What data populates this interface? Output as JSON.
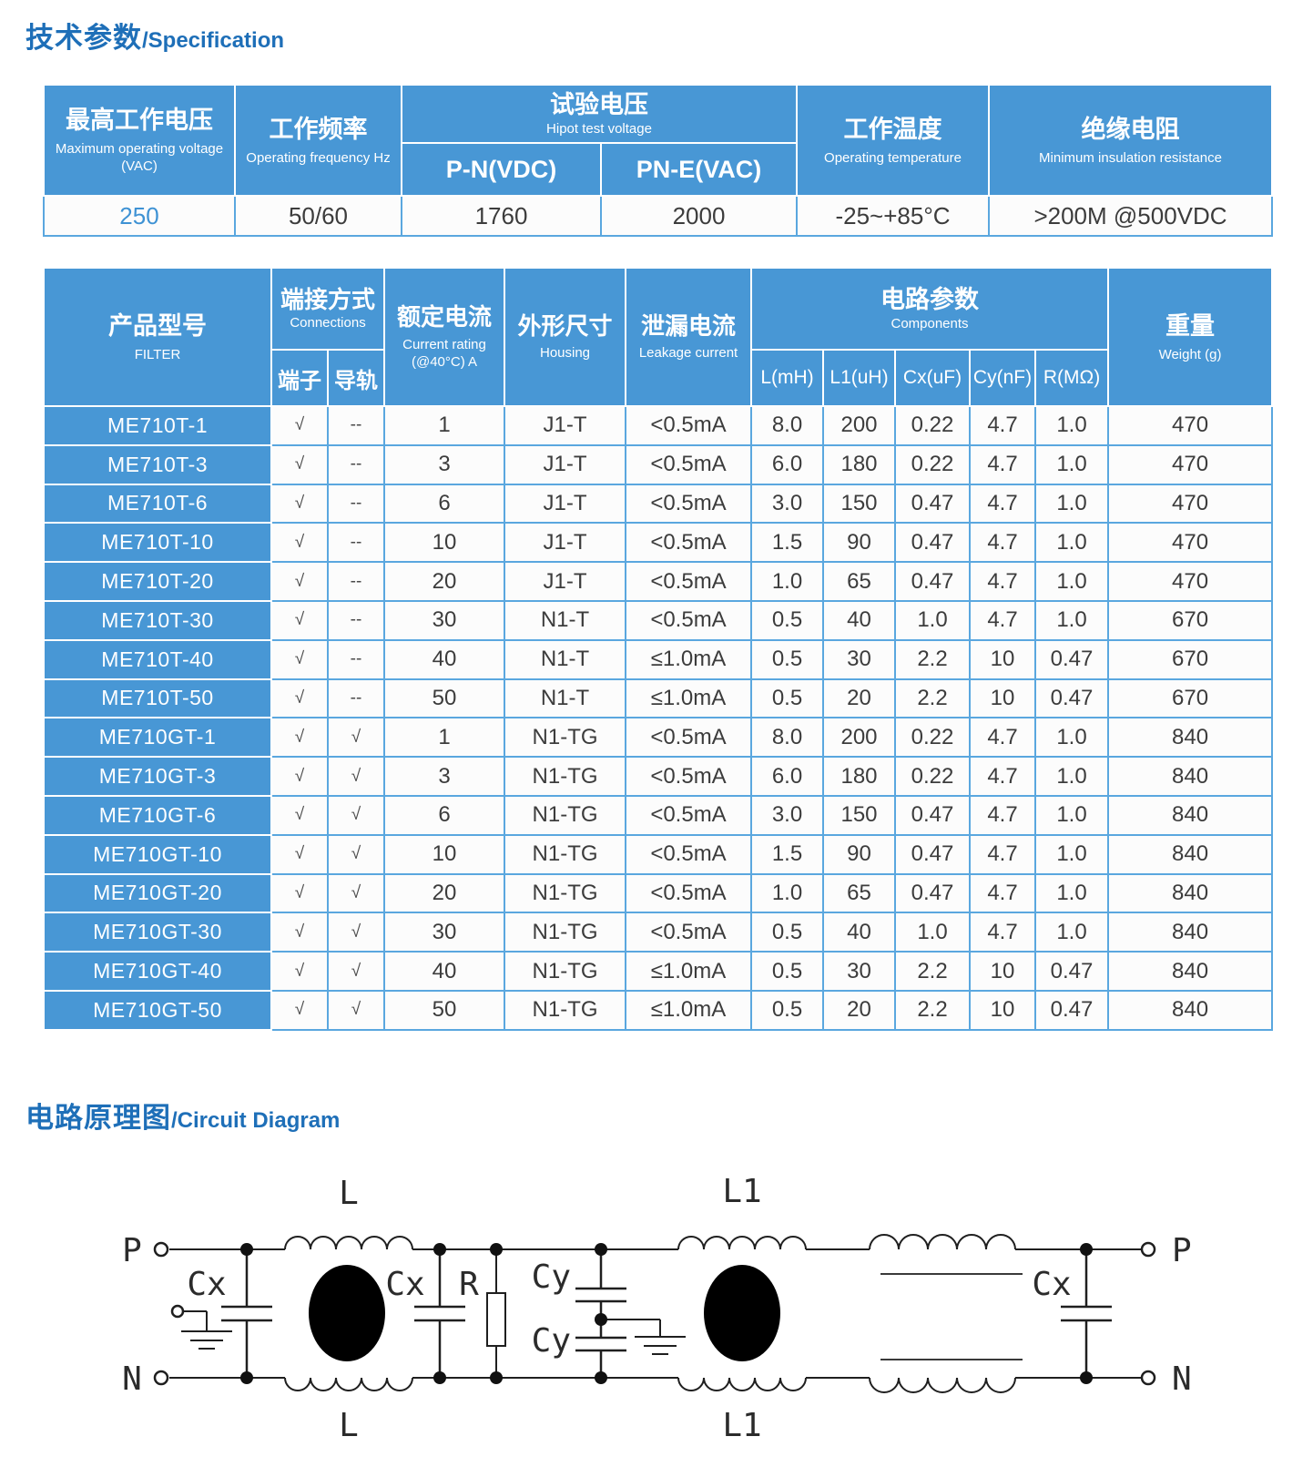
{
  "titles": {
    "spec_zh": "技术参数",
    "spec_en": "/Specification",
    "circuit_zh": "电路原理图",
    "circuit_en": "/Circuit Diagram"
  },
  "colors": {
    "header_blue": "#4897d5",
    "grid_blue": "#5aa7df",
    "title_blue": "#1e6fb8",
    "accent_value_blue": "#3e92d4",
    "body_text": "#3c3c3c"
  },
  "spec_table": {
    "max_voltage": {
      "zh": "最高工作电压",
      "en": "Maximum operating voltage   (VAC)"
    },
    "frequency": {
      "zh": "工作频率",
      "en": "Operating frequency Hz"
    },
    "hipot": {
      "zh": "试验电压",
      "en": "Hipot test voltage",
      "sub_pn": "P-N(VDC)",
      "sub_pne": "PN-E(VAC)"
    },
    "temperature": {
      "zh": "工作温度",
      "en": "Operating temperature"
    },
    "insulation": {
      "zh": "绝缘电阻",
      "en": "Minimum insulation resistance"
    },
    "values": [
      "250",
      "50/60",
      "1760",
      "2000",
      "-25~+85°C",
      ">200M @500VDC"
    ]
  },
  "filter_table": {
    "product": {
      "zh": "产品型号",
      "en": "FILTER"
    },
    "connections": {
      "zh": "端接方式",
      "en": "Connections",
      "sub_terminal": "端子",
      "sub_rail": "导轨"
    },
    "current": {
      "zh": "额定电流",
      "en1": "Current rating",
      "en2": "(@40°C)  A"
    },
    "housing": {
      "zh": "外形尺寸",
      "en": "Housing"
    },
    "leakage": {
      "zh": "泄漏电流",
      "en": "Leakage current"
    },
    "components": {
      "zh": "电路参数",
      "en": "Components",
      "subs": [
        "L(mH)",
        "L1(uH)",
        "Cx(uF)",
        "Cy(nF)",
        "R(MΩ)"
      ]
    },
    "weight": {
      "zh": "重量",
      "en": "Weight (g)"
    },
    "rows": [
      [
        "ME710T-1",
        "√",
        "--",
        "1",
        "J1-T",
        "<0.5mA",
        "8.0",
        "200",
        "0.22",
        "4.7",
        "1.0",
        "470"
      ],
      [
        "ME710T-3",
        "√",
        "--",
        "3",
        "J1-T",
        "<0.5mA",
        "6.0",
        "180",
        "0.22",
        "4.7",
        "1.0",
        "470"
      ],
      [
        "ME710T-6",
        "√",
        "--",
        "6",
        "J1-T",
        "<0.5mA",
        "3.0",
        "150",
        "0.47",
        "4.7",
        "1.0",
        "470"
      ],
      [
        "ME710T-10",
        "√",
        "--",
        "10",
        "J1-T",
        "<0.5mA",
        "1.5",
        "90",
        "0.47",
        "4.7",
        "1.0",
        "470"
      ],
      [
        "ME710T-20",
        "√",
        "--",
        "20",
        "J1-T",
        "<0.5mA",
        "1.0",
        "65",
        "0.47",
        "4.7",
        "1.0",
        "470"
      ],
      [
        "ME710T-30",
        "√",
        "--",
        "30",
        "N1-T",
        "<0.5mA",
        "0.5",
        "40",
        "1.0",
        "4.7",
        "1.0",
        "670"
      ],
      [
        "ME710T-40",
        "√",
        "--",
        "40",
        "N1-T",
        "≤1.0mA",
        "0.5",
        "30",
        "2.2",
        "10",
        "0.47",
        "670"
      ],
      [
        "ME710T-50",
        "√",
        "--",
        "50",
        "N1-T",
        "≤1.0mA",
        "0.5",
        "20",
        "2.2",
        "10",
        "0.47",
        "670"
      ],
      [
        "ME710GT-1",
        "√",
        "√",
        "1",
        "N1-TG",
        "<0.5mA",
        "8.0",
        "200",
        "0.22",
        "4.7",
        "1.0",
        "840"
      ],
      [
        "ME710GT-3",
        "√",
        "√",
        "3",
        "N1-TG",
        "<0.5mA",
        "6.0",
        "180",
        "0.22",
        "4.7",
        "1.0",
        "840"
      ],
      [
        "ME710GT-6",
        "√",
        "√",
        "6",
        "N1-TG",
        "<0.5mA",
        "3.0",
        "150",
        "0.47",
        "4.7",
        "1.0",
        "840"
      ],
      [
        "ME710GT-10",
        "√",
        "√",
        "10",
        "N1-TG",
        "<0.5mA",
        "1.5",
        "90",
        "0.47",
        "4.7",
        "1.0",
        "840"
      ],
      [
        "ME710GT-20",
        "√",
        "√",
        "20",
        "N1-TG",
        "<0.5mA",
        "1.0",
        "65",
        "0.47",
        "4.7",
        "1.0",
        "840"
      ],
      [
        "ME710GT-30",
        "√",
        "√",
        "30",
        "N1-TG",
        "<0.5mA",
        "0.5",
        "40",
        "1.0",
        "4.7",
        "1.0",
        "840"
      ],
      [
        "ME710GT-40",
        "√",
        "√",
        "40",
        "N1-TG",
        "≤1.0mA",
        "0.5",
        "30",
        "2.2",
        "10",
        "0.47",
        "840"
      ],
      [
        "ME710GT-50",
        "√",
        "√",
        "50",
        "N1-TG",
        "≤1.0mA",
        "0.5",
        "20",
        "2.2",
        "10",
        "0.47",
        "840"
      ]
    ]
  },
  "circuit": {
    "labels": {
      "p": "P",
      "n": "N",
      "p_out": "P′",
      "n_out": "N′",
      "l": "L",
      "l1": "L1",
      "cx": "Cx",
      "cy": "Cy",
      "r": "R"
    }
  }
}
